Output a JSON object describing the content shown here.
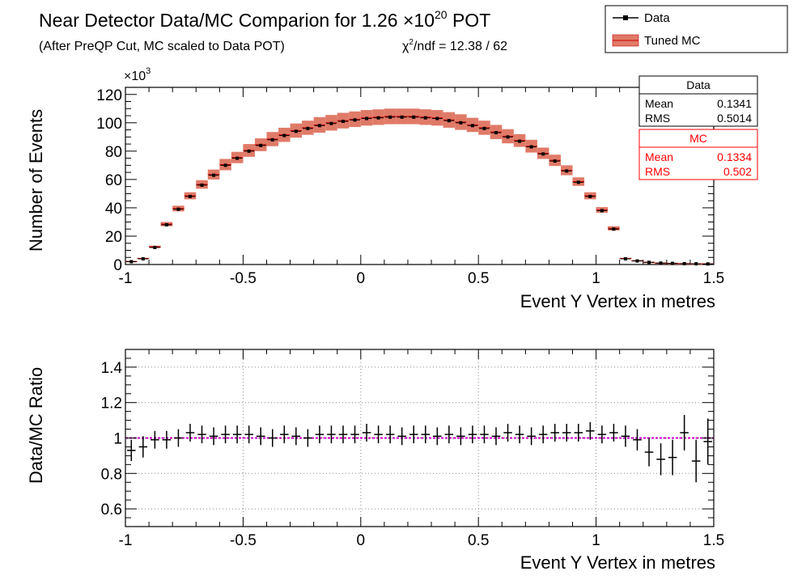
{
  "title": {
    "main": "Near Detector Data/MC Comparion for 1.26 ",
    "times": "×",
    "mult": "10",
    "exp": "20",
    "unit": " POT",
    "subtitle": "(After PreQP Cut, MC scaled to Data POT)",
    "chi": "χ",
    "chi_sup": "2",
    "chi_rest": "/ndf = 12.38 / 62"
  },
  "legend": {
    "data_label": "Data",
    "mc_label": "Tuned MC"
  },
  "stats": {
    "data": {
      "title": "Data",
      "mean_label": "Mean",
      "mean_value": "0.1341",
      "rms_label": "RMS",
      "rms_value": "0.5014"
    },
    "mc": {
      "title": "MC",
      "mean_label": "Mean",
      "mean_value": "0.1334",
      "rms_label": "RMS",
      "rms_value": "0.502"
    }
  },
  "colors": {
    "data": "#000000",
    "mc_band": "#e07a68",
    "mc_line": "#cc0000",
    "stats_mc_text": "#ff0000",
    "ratio_line": "#cc00cc"
  },
  "chart_data": [
    {
      "type": "histogram",
      "panel": "top",
      "xlabel": "Event Y Vertex in metres",
      "ylabel": "Number of Events",
      "y_multiplier": "×10",
      "y_multiplier_exp": "3",
      "xlim": [
        -1,
        1.5
      ],
      "ylim": [
        0,
        125
      ],
      "x_ticks": [
        "-1",
        "-0.5",
        "0",
        "0.5",
        "1",
        "1.5"
      ],
      "y_ticks": [
        "0",
        "20",
        "40",
        "60",
        "80",
        "100",
        "120"
      ],
      "bin_width": 0.05,
      "x_bin_centers": [
        -0.975,
        -0.925,
        -0.875,
        -0.825,
        -0.775,
        -0.725,
        -0.675,
        -0.625,
        -0.575,
        -0.525,
        -0.475,
        -0.425,
        -0.375,
        -0.325,
        -0.275,
        -0.225,
        -0.175,
        -0.125,
        -0.075,
        -0.025,
        0.025,
        0.075,
        0.125,
        0.175,
        0.225,
        0.275,
        0.325,
        0.375,
        0.425,
        0.475,
        0.525,
        0.575,
        0.625,
        0.675,
        0.725,
        0.775,
        0.825,
        0.875,
        0.925,
        0.975,
        1.025,
        1.075,
        1.125,
        1.175,
        1.225,
        1.275,
        1.325,
        1.375,
        1.425,
        1.475
      ],
      "series": [
        {
          "name": "Data",
          "style": "points",
          "values": [
            2,
            4,
            12,
            28,
            39,
            48,
            56,
            63,
            70,
            75,
            80,
            84,
            88,
            91,
            94,
            96,
            98,
            99.5,
            101,
            102,
            103,
            103.5,
            104,
            104,
            104,
            103.5,
            103,
            101.5,
            100,
            98,
            96,
            93,
            90,
            87,
            83,
            78,
            73,
            66,
            58,
            48,
            38,
            25,
            4,
            2.5,
            1.5,
            1,
            0.8,
            0.6,
            0.5,
            0.4
          ]
        },
        {
          "name": "Tuned MC",
          "style": "band",
          "values": [
            2.2,
            4.3,
            12.5,
            28.5,
            39.5,
            48.5,
            56.5,
            63.5,
            70.5,
            75.5,
            80.5,
            84.5,
            88.5,
            91.5,
            94.5,
            96.5,
            98.5,
            100,
            101.5,
            102.5,
            103.5,
            104,
            104.5,
            104.5,
            104.5,
            104,
            103.5,
            102,
            100.5,
            98.5,
            96.5,
            93.5,
            90.5,
            87.5,
            83.5,
            78.5,
            73.5,
            66.5,
            58.5,
            48.5,
            38.5,
            25.5,
            4.3,
            2.7,
            1.6,
            1.1,
            0.9,
            0.7,
            0.6,
            0.5
          ],
          "uncertainty": [
            0.2,
            0.4,
            0.8,
            1.5,
            2,
            2.5,
            3,
            3.5,
            4,
            4,
            4.5,
            4.5,
            5,
            5,
            5,
            5,
            5.5,
            5.5,
            5.5,
            5.5,
            5.5,
            5.5,
            5.5,
            5.5,
            5.5,
            5.5,
            5.5,
            5.5,
            5.5,
            5,
            5,
            5,
            5,
            4.5,
            4.5,
            4,
            4,
            3.5,
            3,
            2.5,
            2,
            1.5,
            0.4,
            0.3,
            0.2,
            0.1,
            0.1,
            0.1,
            0.1,
            0.1
          ]
        }
      ]
    },
    {
      "type": "errorbar",
      "panel": "bottom",
      "xlabel": "Event Y Vertex in metres",
      "ylabel": "Data/MC Ratio",
      "xlim": [
        -1,
        1.5
      ],
      "ylim": [
        0.5,
        1.5
      ],
      "x_ticks": [
        "-1",
        "-0.5",
        "0",
        "0.5",
        "1",
        "1.5"
      ],
      "y_ticks": [
        "0.6",
        "0.8",
        "1",
        "1.2",
        "1.4"
      ],
      "reference_line": 1.0,
      "grid": true,
      "x_bin_centers": [
        -0.975,
        -0.925,
        -0.875,
        -0.825,
        -0.775,
        -0.725,
        -0.675,
        -0.625,
        -0.575,
        -0.525,
        -0.475,
        -0.425,
        -0.375,
        -0.325,
        -0.275,
        -0.225,
        -0.175,
        -0.125,
        -0.075,
        -0.025,
        0.025,
        0.075,
        0.125,
        0.175,
        0.225,
        0.275,
        0.325,
        0.375,
        0.425,
        0.475,
        0.525,
        0.575,
        0.625,
        0.675,
        0.725,
        0.775,
        0.825,
        0.875,
        0.925,
        0.975,
        1.025,
        1.075,
        1.125,
        1.175,
        1.225,
        1.275,
        1.325,
        1.375,
        1.425,
        1.475
      ],
      "series": [
        {
          "name": "Data/MC",
          "values": [
            0.93,
            0.95,
            0.99,
            0.99,
            1.0,
            1.03,
            1.02,
            1.01,
            1.02,
            1.02,
            1.02,
            1.01,
            1.0,
            1.02,
            1.01,
            1.0,
            1.02,
            1.02,
            1.02,
            1.02,
            1.03,
            1.02,
            1.02,
            1.01,
            1.02,
            1.02,
            1.01,
            1.02,
            1.01,
            1.02,
            1.02,
            1.01,
            1.03,
            1.02,
            1.01,
            1.02,
            1.03,
            1.03,
            1.03,
            1.04,
            1.02,
            1.03,
            1.01,
            0.99,
            0.92,
            0.88,
            0.89,
            1.03,
            0.87,
            0.98
          ],
          "errors": [
            0.06,
            0.06,
            0.05,
            0.05,
            0.05,
            0.05,
            0.05,
            0.05,
            0.05,
            0.05,
            0.05,
            0.05,
            0.05,
            0.05,
            0.05,
            0.05,
            0.05,
            0.05,
            0.05,
            0.05,
            0.05,
            0.05,
            0.05,
            0.05,
            0.05,
            0.05,
            0.05,
            0.05,
            0.05,
            0.05,
            0.05,
            0.05,
            0.05,
            0.05,
            0.05,
            0.05,
            0.05,
            0.05,
            0.05,
            0.05,
            0.05,
            0.05,
            0.06,
            0.06,
            0.08,
            0.09,
            0.1,
            0.1,
            0.12,
            0.13
          ]
        }
      ]
    }
  ]
}
